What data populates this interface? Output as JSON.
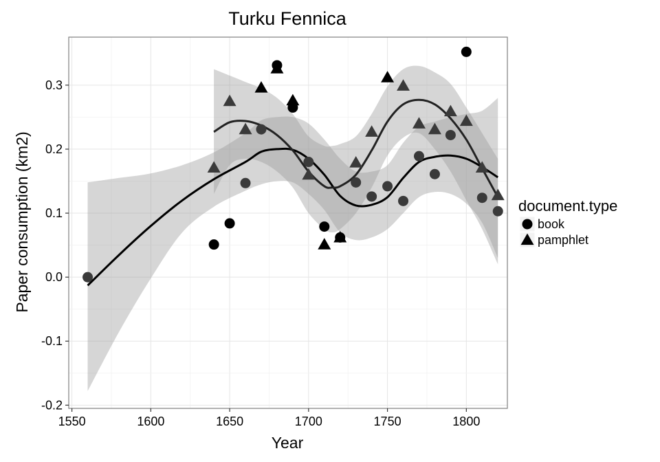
{
  "chart_data": {
    "type": "scatter",
    "title": "Turku Fennica",
    "xlabel": "Year",
    "ylabel": "Paper consumption (km2)",
    "xlim": [
      1548,
      1826
    ],
    "ylim": [
      -0.205,
      0.375
    ],
    "x_ticks": [
      1550,
      1600,
      1650,
      1700,
      1750,
      1800
    ],
    "y_ticks": [
      -0.2,
      -0.1,
      0.0,
      0.1,
      0.2,
      0.3
    ],
    "y_tick_labels": [
      "-0.2",
      "-0.1",
      "0.0",
      "0.1",
      "0.2",
      "0.3"
    ],
    "grid": true,
    "legend": {
      "title": "document.type",
      "position": "right"
    },
    "series": [
      {
        "name": "book",
        "shape": "circle",
        "x": [
          1560,
          1640,
          1650,
          1660,
          1670,
          1680,
          1690,
          1700,
          1710,
          1720,
          1730,
          1740,
          1750,
          1760,
          1770,
          1780,
          1790,
          1800,
          1810,
          1820
        ],
        "y": [
          0.0,
          0.051,
          0.084,
          0.147,
          0.231,
          0.331,
          0.265,
          0.18,
          0.079,
          0.062,
          0.148,
          0.126,
          0.142,
          0.119,
          0.189,
          0.161,
          0.222,
          0.352,
          0.124,
          0.103
        ],
        "smooth": {
          "x": [
            1560,
            1580,
            1600,
            1620,
            1640,
            1660,
            1670,
            1680,
            1690,
            1700,
            1710,
            1720,
            1730,
            1740,
            1750,
            1760,
            1770,
            1780,
            1790,
            1800,
            1810,
            1820
          ],
          "y": [
            -0.013,
            0.035,
            0.08,
            0.12,
            0.153,
            0.18,
            0.196,
            0.2,
            0.199,
            0.185,
            0.16,
            0.127,
            0.112,
            0.113,
            0.125,
            0.155,
            0.18,
            0.188,
            0.19,
            0.185,
            0.172,
            0.156
          ],
          "lower": [
            -0.178,
            -0.085,
            -0.002,
            0.07,
            0.11,
            0.135,
            0.145,
            0.15,
            0.148,
            0.13,
            0.105,
            0.07,
            0.058,
            0.062,
            0.075,
            0.1,
            0.125,
            0.133,
            0.13,
            0.115,
            0.085,
            0.03
          ],
          "upper": [
            0.148,
            0.155,
            0.162,
            0.175,
            0.195,
            0.225,
            0.245,
            0.25,
            0.25,
            0.24,
            0.215,
            0.185,
            0.165,
            0.165,
            0.175,
            0.21,
            0.235,
            0.243,
            0.25,
            0.255,
            0.26,
            0.28
          ]
        }
      },
      {
        "name": "pamphlet",
        "shape": "triangle",
        "x": [
          1640,
          1650,
          1660,
          1670,
          1680,
          1690,
          1700,
          1710,
          1720,
          1730,
          1740,
          1750,
          1760,
          1770,
          1780,
          1790,
          1800,
          1810,
          1820
        ],
        "y": [
          0.171,
          0.275,
          0.231,
          0.296,
          0.326,
          0.276,
          0.16,
          0.051,
          0.062,
          0.179,
          0.227,
          0.312,
          0.299,
          0.24,
          0.231,
          0.259,
          0.244,
          0.171,
          0.128
        ],
        "smooth": {
          "x": [
            1640,
            1650,
            1660,
            1670,
            1680,
            1690,
            1700,
            1710,
            1715,
            1720,
            1730,
            1740,
            1750,
            1760,
            1770,
            1780,
            1790,
            1800,
            1810,
            1820
          ],
          "y": [
            0.227,
            0.242,
            0.244,
            0.237,
            0.222,
            0.198,
            0.165,
            0.142,
            0.14,
            0.142,
            0.16,
            0.198,
            0.243,
            0.27,
            0.277,
            0.27,
            0.248,
            0.215,
            0.17,
            0.125
          ],
          "lower": [
            0.13,
            0.175,
            0.185,
            0.18,
            0.165,
            0.14,
            0.1,
            0.075,
            0.07,
            0.075,
            0.1,
            0.14,
            0.19,
            0.218,
            0.225,
            0.2,
            0.165,
            0.12,
            0.075,
            0.02
          ],
          "upper": [
            0.325,
            0.315,
            0.305,
            0.295,
            0.28,
            0.255,
            0.22,
            0.205,
            0.205,
            0.208,
            0.22,
            0.255,
            0.298,
            0.325,
            0.33,
            0.32,
            0.302,
            0.265,
            0.225,
            0.185
          ]
        }
      }
    ]
  }
}
